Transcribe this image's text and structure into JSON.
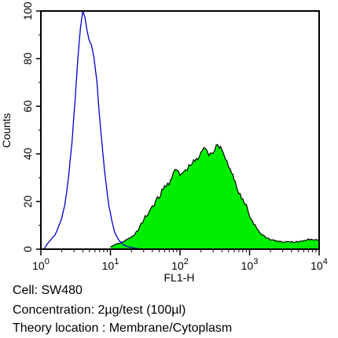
{
  "chart_data": {
    "type": "area",
    "xscale": "log",
    "xlim": [
      1,
      10000
    ],
    "ylim": [
      0,
      100
    ],
    "xlabel": "FL1-H",
    "ylabel": "Counts",
    "xticks": [
      {
        "value": 1,
        "base": "10",
        "exp": "0"
      },
      {
        "value": 10,
        "base": "10",
        "exp": "1"
      },
      {
        "value": 100,
        "base": "10",
        "exp": "2"
      },
      {
        "value": 1000,
        "base": "10",
        "exp": "3"
      },
      {
        "value": 10000,
        "base": "10",
        "exp": "4"
      }
    ],
    "yticks": [
      "0",
      "20",
      "40",
      "60",
      "80",
      "100"
    ],
    "yticks_values": [
      0,
      20,
      40,
      60,
      80,
      100
    ],
    "series": [
      {
        "role": "control",
        "color": "#0000cc",
        "fill": "none",
        "x": [
          1.1,
          1.3,
          1.6,
          1.9,
          2.2,
          2.5,
          2.8,
          3.1,
          3.4,
          3.7,
          4.0,
          4.3,
          4.6,
          4.9,
          5.3,
          5.8,
          6.4,
          7.0,
          7.8,
          8.6,
          9.5,
          10.5,
          11.5,
          13.0,
          15.0,
          18.0,
          22.0,
          28.0
        ],
        "y": [
          0,
          3,
          6,
          11,
          18,
          30,
          45,
          62,
          80,
          93,
          100,
          97,
          92,
          88,
          86,
          80,
          70,
          55,
          40,
          28,
          18,
          12,
          7,
          4,
          2,
          1,
          0.5,
          0
        ]
      },
      {
        "role": "sample",
        "color": "#00ee00",
        "outline": "#000000",
        "fill": "#00ee00",
        "x": [
          10,
          12,
          15,
          20,
          25,
          30,
          40,
          50,
          60,
          70,
          80,
          90,
          100,
          120,
          150,
          180,
          200,
          230,
          260,
          300,
          350,
          400,
          450,
          500,
          550,
          600,
          650,
          700,
          800,
          900,
          1000,
          1200,
          1500,
          2000,
          3000,
          5000,
          7000,
          9000,
          10000
        ],
        "y": [
          1,
          2,
          3,
          5,
          8,
          12,
          18,
          22,
          26,
          28,
          32,
          33,
          31,
          33,
          36,
          38,
          40,
          43,
          40,
          41,
          44,
          42,
          38,
          35,
          33,
          29,
          26,
          24,
          20,
          18,
          14,
          10,
          6,
          4,
          3,
          3,
          4,
          4,
          4
        ]
      }
    ]
  },
  "captions": {
    "cell": "Cell: SW480",
    "concentration": "Concentration: 2µg/test (100µl)",
    "location": "Theory location : Membrane/Cytoplasm"
  }
}
